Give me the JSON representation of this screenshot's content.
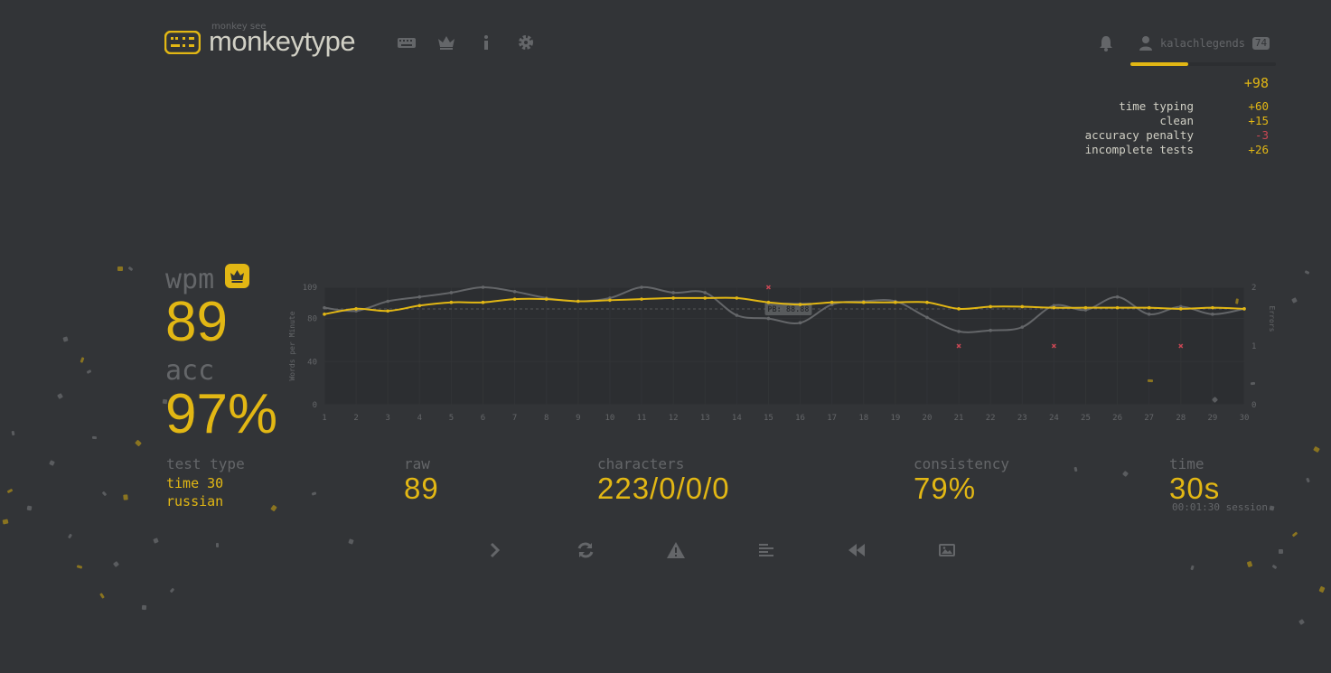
{
  "header": {
    "logo_sub": "monkey see",
    "logo_text": "monkeytype",
    "nav_icons": [
      "keyboard-icon",
      "crown-icon",
      "info-icon",
      "gear-icon"
    ],
    "account_name": "kalachlegends",
    "account_level": "74",
    "xp_progress": 0.4
  },
  "xp": {
    "total": "+98",
    "rows": [
      {
        "label": "time typing",
        "value": "+60"
      },
      {
        "label": "clean",
        "value": "+15"
      },
      {
        "label": "accuracy penalty",
        "value": "-3"
      },
      {
        "label": "incomplete tests",
        "value": "+26"
      }
    ]
  },
  "stats": {
    "wpm_label": "wpm",
    "wpm": "89",
    "acc_label": "acc",
    "acc": "97%",
    "test_type_label": "test type",
    "test_type": "time 30",
    "language": "russian",
    "raw_label": "raw",
    "raw": "89",
    "characters_label": "characters",
    "characters": "223/0/0/0",
    "consistency_label": "consistency",
    "consistency": "79%",
    "time_label": "time",
    "time": "30s",
    "session": "00:01:30 session"
  },
  "buttons": [
    "next-test",
    "restart",
    "report",
    "words-history",
    "replay",
    "screenshot"
  ],
  "colors": {
    "bg": "#323437",
    "main": "#e2b714",
    "sub": "#646669",
    "text": "#d1d0c5",
    "error": "#ca4754"
  },
  "chart_data": {
    "type": "line",
    "x": [
      1,
      2,
      3,
      4,
      5,
      6,
      7,
      8,
      9,
      10,
      11,
      12,
      13,
      14,
      15,
      16,
      17,
      18,
      19,
      20,
      21,
      22,
      23,
      24,
      25,
      26,
      27,
      28,
      29,
      30
    ],
    "series": [
      {
        "name": "wpm",
        "values": [
          84,
          89,
          87,
          92,
          95,
          95,
          98,
          98,
          96,
          97,
          98,
          99,
          99,
          99,
          95,
          93,
          95,
          95,
          95,
          95,
          89,
          91,
          91,
          90,
          90,
          90,
          90,
          89,
          90,
          89
        ]
      },
      {
        "name": "raw",
        "values": [
          90,
          87,
          96,
          100,
          104,
          109,
          105,
          99,
          96,
          99,
          109,
          104,
          104,
          83,
          80,
          76,
          93,
          96,
          96,
          81,
          68,
          69,
          72,
          92,
          88,
          100,
          84,
          91,
          84,
          89
        ]
      }
    ],
    "errors": [
      {
        "x": 15,
        "y": 2
      },
      {
        "x": 21,
        "y": 1
      },
      {
        "x": 24,
        "y": 1
      },
      {
        "x": 28,
        "y": 1
      }
    ],
    "pb_label": "PB: 88.88",
    "pb_value": 88.88,
    "ylabel": "Words per Minute",
    "y2label": "Errors",
    "ylim": [
      0,
      109
    ],
    "yticks": [
      "109",
      "80",
      "40",
      "0"
    ],
    "y2lim": [
      0,
      2
    ],
    "y2ticks": [
      "2",
      "1",
      "0"
    ],
    "grid": true
  }
}
